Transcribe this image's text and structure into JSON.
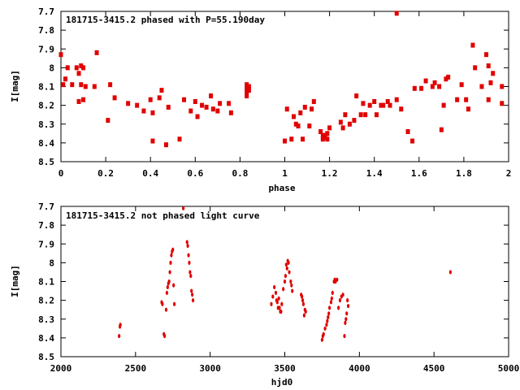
{
  "chart_data": [
    {
      "type": "scatter",
      "title": "181715-3415.2 phased with P=55.190day",
      "xlabel": "phase",
      "ylabel": "I[mag]",
      "xlim": [
        0,
        2
      ],
      "ylim": [
        7.7,
        8.5
      ],
      "y_inverted": true,
      "x_ticks": [
        "0",
        "0.2",
        "0.4",
        "0.6",
        "0.8",
        "1",
        "1.2",
        "1.4",
        "1.6",
        "1.8",
        "2"
      ],
      "y_ticks": [
        "7.7",
        "7.8",
        "7.9",
        "8",
        "8.1",
        "8.2",
        "8.3",
        "8.4",
        "8.5"
      ],
      "marker_color": "#e00000",
      "series": [
        {
          "points": [
            [
              0.0,
              7.93
            ],
            [
              0.01,
              8.09
            ],
            [
              0.02,
              8.06
            ],
            [
              0.03,
              8.0
            ],
            [
              0.05,
              8.09
            ],
            [
              0.07,
              8.0
            ],
            [
              0.08,
              8.03
            ],
            [
              0.08,
              8.18
            ],
            [
              0.09,
              8.09
            ],
            [
              0.09,
              7.99
            ],
            [
              0.1,
              8.17
            ],
            [
              0.1,
              8.0
            ],
            [
              0.11,
              8.1
            ],
            [
              0.15,
              8.1
            ],
            [
              0.16,
              7.92
            ],
            [
              0.21,
              8.28
            ],
            [
              0.22,
              8.09
            ],
            [
              0.24,
              8.16
            ],
            [
              0.3,
              8.19
            ],
            [
              0.34,
              8.2
            ],
            [
              0.37,
              8.23
            ],
            [
              0.4,
              8.17
            ],
            [
              0.41,
              8.39
            ],
            [
              0.41,
              8.24
            ],
            [
              0.44,
              8.16
            ],
            [
              0.45,
              8.12
            ],
            [
              0.47,
              8.41
            ],
            [
              0.48,
              8.21
            ],
            [
              0.53,
              8.38
            ],
            [
              0.55,
              8.17
            ],
            [
              0.58,
              8.23
            ],
            [
              0.6,
              8.18
            ],
            [
              0.61,
              8.26
            ],
            [
              0.63,
              8.2
            ],
            [
              0.65,
              8.21
            ],
            [
              0.67,
              8.15
            ],
            [
              0.68,
              8.22
            ],
            [
              0.7,
              8.23
            ],
            [
              0.71,
              8.19
            ],
            [
              0.75,
              8.19
            ],
            [
              0.76,
              8.24
            ],
            [
              0.83,
              8.09
            ],
            [
              0.83,
              8.11
            ],
            [
              0.83,
              8.13
            ],
            [
              0.83,
              8.15
            ],
            [
              0.84,
              8.1
            ],
            [
              0.84,
              8.12
            ],
            [
              1.0,
              8.39
            ],
            [
              1.01,
              8.22
            ],
            [
              1.03,
              8.38
            ],
            [
              1.04,
              8.26
            ],
            [
              1.05,
              8.3
            ],
            [
              1.06,
              8.31
            ],
            [
              1.07,
              8.24
            ],
            [
              1.08,
              8.38
            ],
            [
              1.09,
              8.21
            ],
            [
              1.11,
              8.31
            ],
            [
              1.12,
              8.22
            ],
            [
              1.13,
              8.18
            ],
            [
              1.16,
              8.34
            ],
            [
              1.17,
              8.36
            ],
            [
              1.17,
              8.38
            ],
            [
              1.18,
              8.37
            ],
            [
              1.18,
              8.36
            ],
            [
              1.19,
              8.38
            ],
            [
              1.19,
              8.35
            ],
            [
              1.2,
              8.32
            ],
            [
              1.25,
              8.29
            ],
            [
              1.26,
              8.32
            ],
            [
              1.27,
              8.25
            ],
            [
              1.29,
              8.3
            ],
            [
              1.31,
              8.28
            ],
            [
              1.32,
              8.15
            ],
            [
              1.34,
              8.25
            ],
            [
              1.35,
              8.19
            ],
            [
              1.36,
              8.25
            ],
            [
              1.38,
              8.2
            ],
            [
              1.4,
              8.18
            ],
            [
              1.41,
              8.25
            ],
            [
              1.43,
              8.2
            ],
            [
              1.44,
              8.2
            ],
            [
              1.46,
              8.18
            ],
            [
              1.47,
              8.2
            ],
            [
              1.5,
              7.71
            ],
            [
              1.5,
              8.17
            ],
            [
              1.52,
              8.22
            ],
            [
              1.55,
              8.34
            ],
            [
              1.57,
              8.39
            ],
            [
              1.58,
              8.11
            ],
            [
              1.61,
              8.11
            ],
            [
              1.63,
              8.07
            ],
            [
              1.66,
              8.1
            ],
            [
              1.67,
              8.08
            ],
            [
              1.69,
              8.1
            ],
            [
              1.7,
              8.33
            ],
            [
              1.71,
              8.2
            ],
            [
              1.72,
              8.06
            ],
            [
              1.73,
              8.05
            ],
            [
              1.77,
              8.17
            ],
            [
              1.79,
              8.09
            ],
            [
              1.81,
              8.17
            ],
            [
              1.82,
              8.22
            ],
            [
              1.84,
              7.88
            ],
            [
              1.85,
              8.0
            ],
            [
              1.88,
              8.1
            ],
            [
              1.9,
              7.93
            ],
            [
              1.91,
              8.17
            ],
            [
              1.91,
              7.99
            ],
            [
              1.92,
              8.08
            ],
            [
              1.93,
              8.03
            ],
            [
              1.97,
              8.1
            ],
            [
              1.97,
              8.19
            ]
          ]
        }
      ]
    },
    {
      "type": "scatter",
      "title": "181715-3415.2 not phased light curve",
      "xlabel": "hjd0",
      "ylabel": "I[mag]",
      "xlim": [
        2000,
        5000
      ],
      "ylim": [
        7.7,
        8.5
      ],
      "y_inverted": true,
      "x_ticks": [
        "2000",
        "2500",
        "3000",
        "3500",
        "4000",
        "4500",
        "5000"
      ],
      "y_ticks": [
        "7.7",
        "7.8",
        "7.9",
        "8",
        "8.1",
        "8.2",
        "8.3",
        "8.4",
        "8.5"
      ],
      "marker_color": "#e00000",
      "series": [
        {
          "points": [
            [
              2390,
              8.39
            ],
            [
              2395,
              8.34
            ],
            [
              2398,
              8.33
            ],
            [
              2675,
              8.21
            ],
            [
              2680,
              8.22
            ],
            [
              2690,
              8.38
            ],
            [
              2695,
              8.39
            ],
            [
              2705,
              8.25
            ],
            [
              2710,
              8.16
            ],
            [
              2715,
              8.13
            ],
            [
              2720,
              8.11
            ],
            [
              2725,
              8.1
            ],
            [
              2730,
              8.05
            ],
            [
              2735,
              8.0
            ],
            [
              2740,
              7.96
            ],
            [
              2745,
              7.94
            ],
            [
              2750,
              7.93
            ],
            [
              2755,
              8.12
            ],
            [
              2760,
              8.22
            ],
            [
              2820,
              7.71
            ],
            [
              2845,
              7.89
            ],
            [
              2850,
              7.91
            ],
            [
              2855,
              7.96
            ],
            [
              2860,
              8.0
            ],
            [
              2865,
              8.05
            ],
            [
              2870,
              8.07
            ],
            [
              2875,
              8.15
            ],
            [
              2880,
              8.17
            ],
            [
              2885,
              8.2
            ],
            [
              3410,
              8.22
            ],
            [
              3420,
              8.18
            ],
            [
              3430,
              8.13
            ],
            [
              3440,
              8.16
            ],
            [
              3445,
              8.2
            ],
            [
              3450,
              8.21
            ],
            [
              3455,
              8.24
            ],
            [
              3460,
              8.19
            ],
            [
              3465,
              8.24
            ],
            [
              3470,
              8.26
            ],
            [
              3475,
              8.26
            ],
            [
              3480,
              8.22
            ],
            [
              3490,
              8.14
            ],
            [
              3500,
              8.1
            ],
            [
              3505,
              8.07
            ],
            [
              3510,
              8.01
            ],
            [
              3515,
              8.03
            ],
            [
              3520,
              7.99
            ],
            [
              3525,
              8.0
            ],
            [
              3530,
              8.05
            ],
            [
              3540,
              8.1
            ],
            [
              3545,
              8.12
            ],
            [
              3550,
              8.15
            ],
            [
              3610,
              8.17
            ],
            [
              3615,
              8.18
            ],
            [
              3620,
              8.2
            ],
            [
              3625,
              8.22
            ],
            [
              3630,
              8.28
            ],
            [
              3635,
              8.25
            ],
            [
              3640,
              8.26
            ],
            [
              3750,
              8.41
            ],
            [
              3755,
              8.39
            ],
            [
              3760,
              8.38
            ],
            [
              3770,
              8.35
            ],
            [
              3780,
              8.33
            ],
            [
              3785,
              8.31
            ],
            [
              3790,
              8.29
            ],
            [
              3795,
              8.27
            ],
            [
              3800,
              8.24
            ],
            [
              3810,
              8.21
            ],
            [
              3815,
              8.19
            ],
            [
              3820,
              8.16
            ],
            [
              3830,
              8.1
            ],
            [
              3835,
              8.09
            ],
            [
              3840,
              8.1
            ],
            [
              3850,
              8.09
            ],
            [
              3860,
              8.24
            ],
            [
              3870,
              8.2
            ],
            [
              3880,
              8.18
            ],
            [
              3890,
              8.17
            ],
            [
              3900,
              8.39
            ],
            [
              3905,
              8.32
            ],
            [
              3910,
              8.3
            ],
            [
              3915,
              8.27
            ],
            [
              3920,
              8.2
            ],
            [
              3925,
              8.23
            ],
            [
              4610,
              8.05
            ]
          ]
        }
      ]
    }
  ]
}
